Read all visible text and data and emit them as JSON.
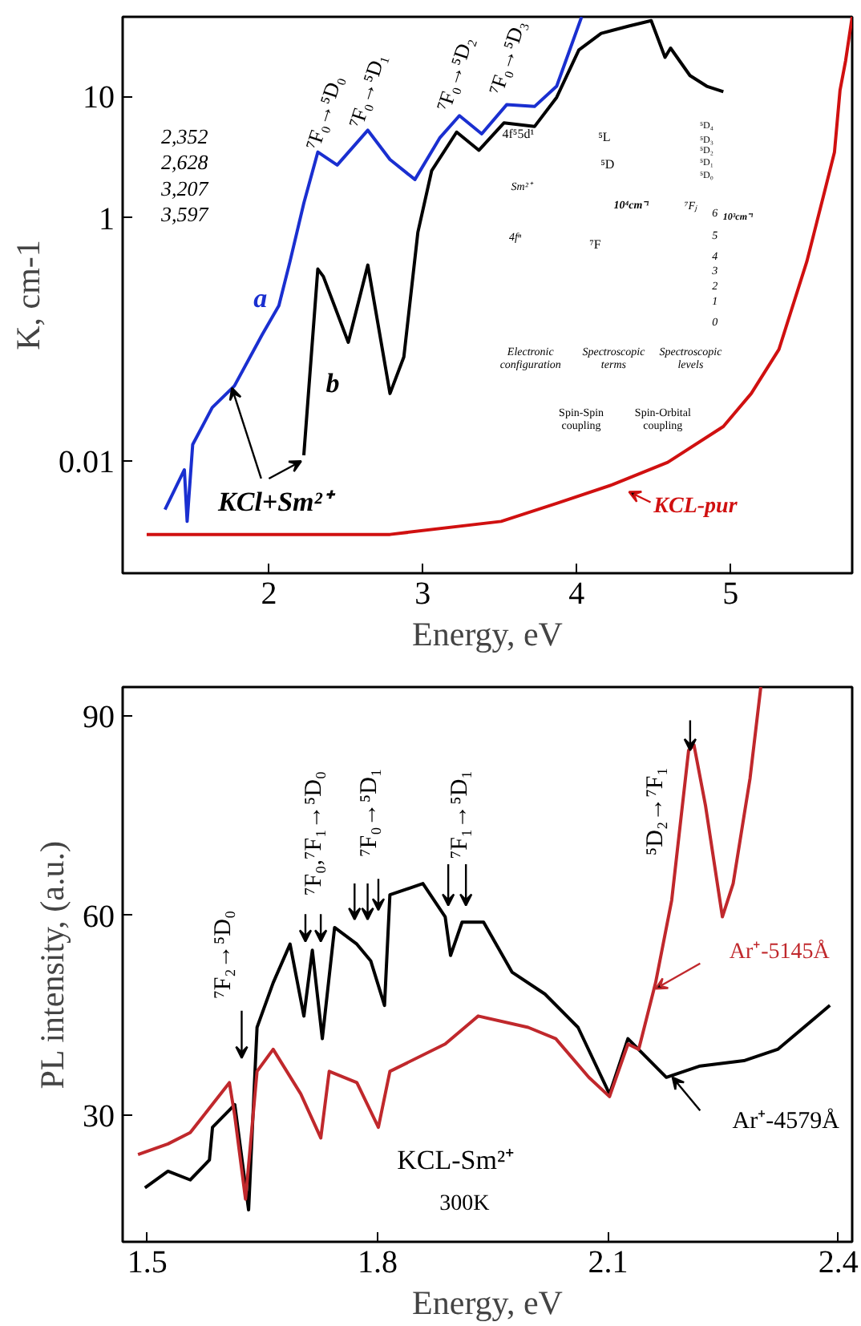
{
  "chart_data": [
    {
      "type": "line",
      "xlabel": "Energy, eV",
      "ylabel": "K, cm-1",
      "log": "y",
      "xlim": [
        1.05,
        5.79
      ],
      "ylim": [
        0.0012,
        45
      ],
      "xticks": [
        2,
        3,
        4,
        5
      ],
      "yticks": [
        10,
        1,
        0.01
      ],
      "series": [
        {
          "name": "a",
          "color": "#1a2fd0",
          "x": [
            1.325,
            1.451,
            1.469,
            1.505,
            1.632,
            1.776,
            1.957,
            2.065,
            2.137,
            2.227,
            2.318,
            2.444,
            2.643,
            2.787,
            2.949,
            3.112,
            3.238,
            3.383,
            3.545,
            3.726,
            3.87,
            4.032
          ],
          "values": [
            0.004,
            0.0085,
            0.0032,
            0.0137,
            0.0276,
            0.0416,
            0.11,
            0.19,
            0.437,
            1.32,
            3.48,
            2.72,
            5.26,
            3.02,
            2.07,
            4.58,
            6.93,
            4.91,
            8.53,
            8.24,
            12.1,
            44.9
          ]
        },
        {
          "name": "b",
          "color": "#000000",
          "x": [
            2.227,
            2.318,
            2.354,
            2.516,
            2.643,
            2.787,
            2.877,
            2.968,
            3.058,
            3.22,
            3.365,
            3.527,
            3.726,
            3.87,
            4.014,
            4.159,
            4.339,
            4.484,
            4.574,
            4.61,
            4.736,
            4.845,
            4.953
          ],
          "values": [
            0.0112,
            0.38,
            0.33,
            0.095,
            0.41,
            0.036,
            0.072,
            0.76,
            2.45,
            5.08,
            3.6,
            6.04,
            5.64,
            9.8,
            24.0,
            32.9,
            37.8,
            41.9,
            20.9,
            24.9,
            14.8,
            12.1,
            10.9
          ]
        },
        {
          "name": "KCL-pur",
          "color": "#d01010",
          "x": [
            1.206,
            2.787,
            3.509,
            3.87,
            4.231,
            4.592,
            4.953,
            5.134,
            5.314,
            5.495,
            5.603,
            5.675,
            5.711,
            5.747,
            5.79
          ],
          "values": [
            0.0025,
            0.0025,
            0.0032,
            0.0045,
            0.0064,
            0.0098,
            0.0193,
            0.036,
            0.083,
            0.437,
            1.51,
            3.48,
            11.2,
            19.5,
            45
          ]
        }
      ],
      "annotations": [
        "⁷F₀→⁵D₀",
        "⁷F₀→⁵D₁",
        "⁷F₀→⁵D₂",
        "⁷F₀→⁵D₃",
        "2,352",
        "2,628",
        "3,207",
        "3,597",
        {
          "text": "KCl+Sm²⁺",
          "x": 1.76,
          "y": 0.04
        },
        "4f⁵5d¹",
        "⁵L",
        "Sm²⁺",
        "⁵D",
        "10⁴cm⁻¹",
        "⁷Fⱼ",
        "10³cm⁻¹",
        "4fⁿ",
        "⁷F",
        "⁵D₄",
        "⁵D₃",
        "⁵D₂",
        "⁵D₁",
        "⁵D₀",
        "6",
        "5",
        "4",
        "3",
        "2",
        "1",
        "0",
        "Electronic\nconfiguration",
        "Spectroscopic\nterms",
        "Spectroscopic\nlevels",
        "Spin-Spin\ncoupling",
        "Spin-Orbital\ncoupling"
      ]
    },
    {
      "type": "line",
      "xlabel": "Energy, eV",
      "ylabel": "PL intensity, (a.u.)",
      "xlim": [
        1.468,
        2.418
      ],
      "ylim": [
        11,
        94.3
      ],
      "xticks": [
        1.5,
        1.8,
        2.1,
        2.4
      ],
      "yticks": [
        30,
        60,
        90
      ],
      "series": [
        {
          "name": "Ar⁺-4579Å",
          "color": "#000000",
          "x": [
            1.497,
            1.527,
            1.556,
            1.581,
            1.585,
            1.614,
            1.632,
            1.643,
            1.664,
            1.686,
            1.704,
            1.715,
            1.728,
            1.744,
            1.773,
            1.791,
            1.809,
            1.816,
            1.859,
            1.888,
            1.895,
            1.91,
            1.938,
            1.975,
            2.018,
            2.061,
            2.102,
            2.126,
            2.176,
            2.22,
            2.277,
            2.321,
            2.389
          ],
          "values": [
            19.1,
            21.6,
            20.3,
            23.3,
            28.2,
            31.6,
            15.8,
            43.2,
            49.9,
            55.7,
            44.9,
            54.8,
            41.5,
            58.2,
            55.7,
            53.2,
            46.5,
            63.1,
            64.8,
            59.8,
            54.0,
            59.0,
            59.0,
            51.5,
            48.2,
            43.2,
            33.2,
            41.5,
            35.7,
            37.4,
            38.2,
            39.9,
            46.5
          ]
        },
        {
          "name": "Ar⁺-5145Å",
          "color": "#c0282c",
          "x": [
            1.488,
            1.527,
            1.556,
            1.607,
            1.614,
            1.628,
            1.643,
            1.664,
            1.7,
            1.726,
            1.737,
            1.773,
            1.801,
            1.816,
            1.888,
            1.931,
            1.996,
            2.032,
            2.075,
            2.102,
            2.126,
            2.14,
            2.162,
            2.183,
            2.205,
            2.212,
            2.227,
            2.249,
            2.263,
            2.285,
            2.299
          ],
          "values": [
            24.1,
            25.7,
            27.4,
            34.9,
            29.9,
            17.4,
            36.6,
            39.9,
            33.2,
            26.6,
            36.6,
            34.9,
            28.2,
            36.6,
            40.7,
            44.9,
            43.2,
            41.5,
            35.7,
            32.8,
            40.7,
            39.9,
            49.9,
            62.3,
            84.8,
            85.6,
            76.5,
            59.8,
            64.8,
            80.6,
            94.3
          ]
        }
      ],
      "annotations": [
        "⁷F₂→⁵D₀",
        "⁷F₀,⁷F₁→⁵D₀",
        "⁷F₀→⁵D₁",
        "⁷F₁→⁵D₁",
        {
          "text": "⁵D₂→⁷F₁",
          "x": 2.207,
          "y": 84.8
        },
        "KCL-Sm²⁺",
        "300K"
      ]
    }
  ]
}
